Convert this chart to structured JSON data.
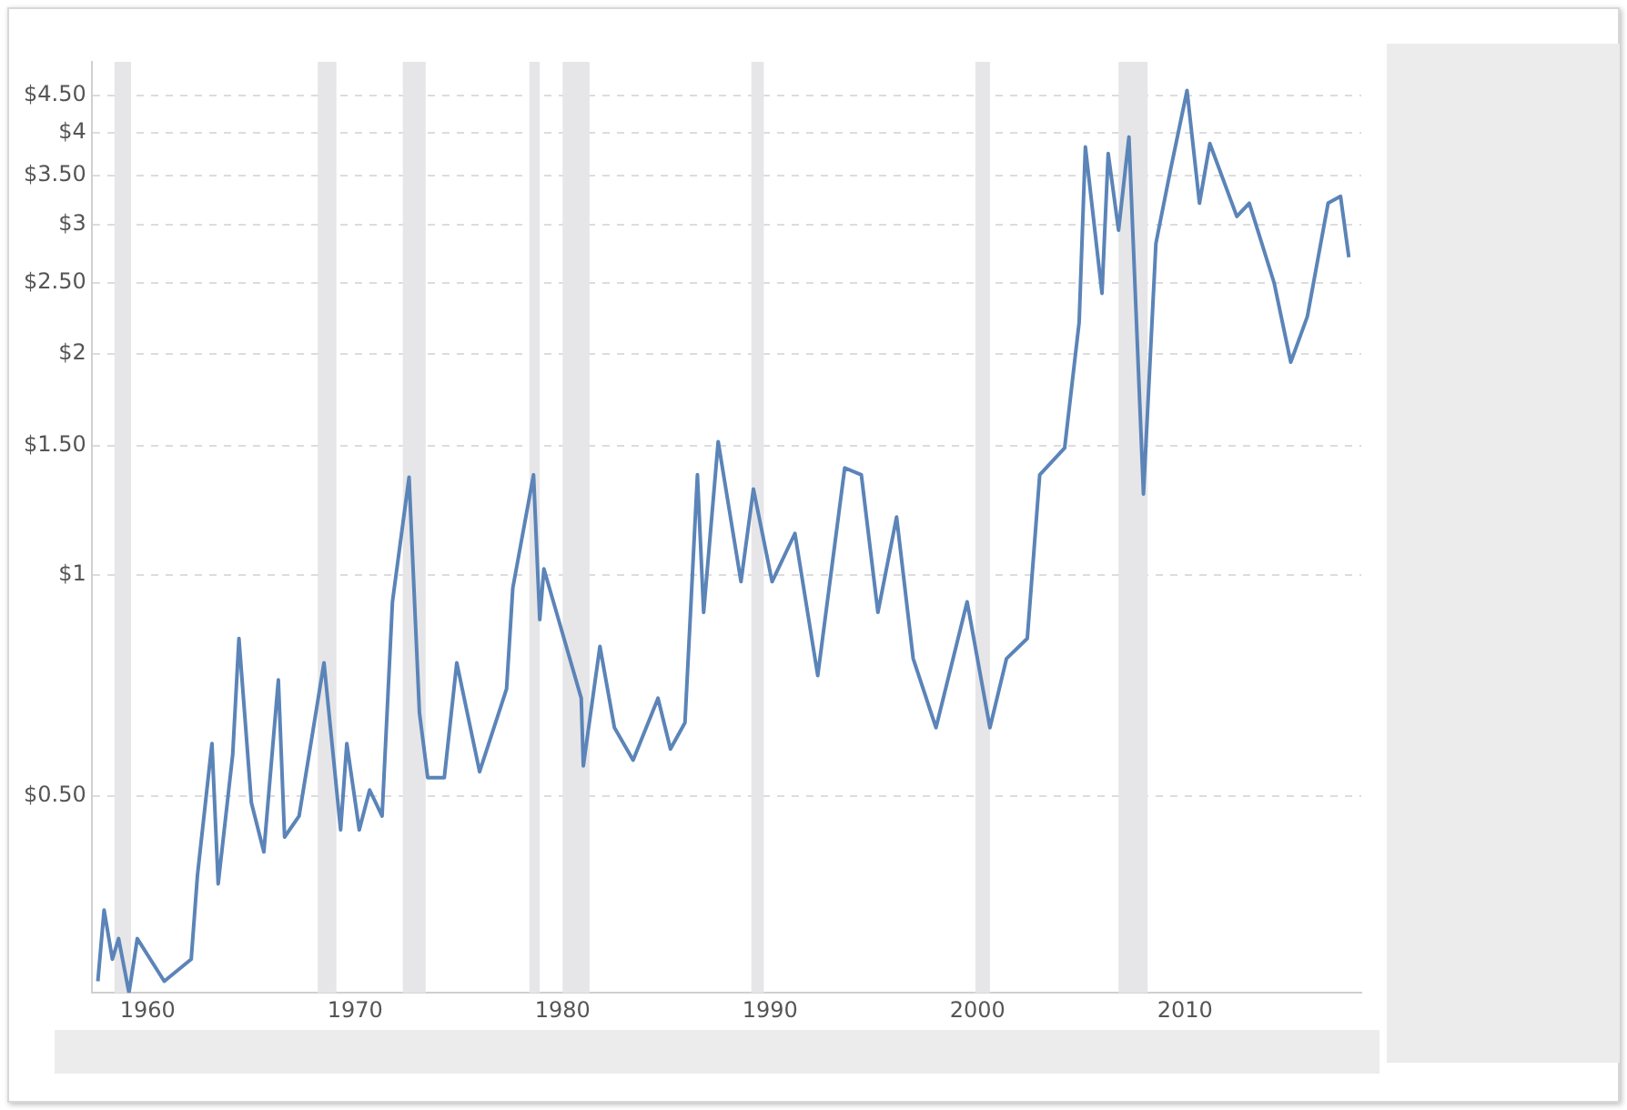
{
  "chart_data": {
    "type": "line",
    "color": "#5b84b8",
    "x": [
      1957.6,
      1957.9,
      1958.3,
      1958.6,
      1959.1,
      1959.5,
      1960.8,
      1962.1,
      1962.4,
      1963.1,
      1963.4,
      1964.1,
      1964.4,
      1965.0,
      1965.6,
      1966.3,
      1966.6,
      1967.3,
      1968.5,
      1969.3,
      1969.6,
      1970.2,
      1970.7,
      1971.3,
      1971.8,
      1972.6,
      1973.1,
      1973.5,
      1974.3,
      1974.9,
      1976.0,
      1977.3,
      1977.6,
      1978.6,
      1978.9,
      1979.1,
      1980.9,
      1981.0,
      1981.8,
      1982.5,
      1983.4,
      1984.6,
      1985.2,
      1985.9,
      1986.5,
      1986.8,
      1987.5,
      1988.6,
      1989.2,
      1990.1,
      1991.2,
      1992.3,
      1993.6,
      1994.4,
      1995.2,
      1996.1,
      1996.9,
      1998.0,
      1999.5,
      2000.6,
      2001.4,
      2002.4,
      2003.0,
      2004.2,
      2004.9,
      2005.2,
      2006.0,
      2006.3,
      2006.8,
      2007.3,
      2008.0,
      2008.6,
      2009.3,
      2010.1,
      2010.7,
      2011.2,
      2012.5,
      2013.1,
      2014.3,
      2015.1,
      2015.9,
      2016.9,
      2017.5,
      2017.9
    ],
    "values": [
      0.28,
      0.35,
      0.3,
      0.32,
      0.27,
      0.32,
      0.28,
      0.3,
      0.39,
      0.59,
      0.38,
      0.57,
      0.82,
      0.49,
      0.42,
      0.72,
      0.44,
      0.47,
      0.76,
      0.45,
      0.59,
      0.45,
      0.51,
      0.47,
      0.92,
      1.36,
      0.65,
      0.53,
      0.53,
      0.76,
      0.54,
      0.7,
      0.96,
      1.37,
      0.87,
      1.02,
      0.68,
      0.55,
      0.8,
      0.62,
      0.56,
      0.68,
      0.58,
      0.63,
      1.37,
      0.89,
      1.52,
      0.98,
      1.31,
      0.98,
      1.14,
      0.73,
      1.4,
      1.37,
      0.89,
      1.2,
      0.77,
      0.62,
      0.92,
      0.62,
      0.77,
      0.82,
      1.37,
      1.49,
      2.21,
      3.83,
      2.42,
      3.75,
      2.95,
      3.95,
      1.29,
      2.83,
      3.56,
      4.57,
      3.21,
      3.87,
      3.08,
      3.21,
      2.5,
      1.95,
      2.25,
      3.21,
      3.28,
      2.71
    ],
    "log": "y",
    "grid": "y",
    "line_style": "solid",
    "marker": "none",
    "xlim": [
      1957.3,
      2018.5
    ],
    "xticks": [
      1960,
      1970,
      1980,
      1990,
      2000,
      2010
    ],
    "ylim": [
      0.27,
      5
    ],
    "yticks": [
      {
        "value": 0.5,
        "label": "$0.50"
      },
      {
        "value": 1,
        "label": "$1"
      },
      {
        "value": 1.5,
        "label": "$1.50"
      },
      {
        "value": 2,
        "label": "$2"
      },
      {
        "value": 2.5,
        "label": "$2.50"
      },
      {
        "value": 3,
        "label": "$3"
      },
      {
        "value": 3.5,
        "label": "$3.50"
      },
      {
        "value": 4,
        "label": "$4"
      },
      {
        "value": 4.5,
        "label": "$4.50"
      }
    ],
    "bands": [
      {
        "axis": "x",
        "from": 1958.4,
        "to": 1959.2,
        "color": "#e6e6e8"
      },
      {
        "axis": "x",
        "from": 1968.2,
        "to": 1969.1,
        "color": "#e6e6e8"
      },
      {
        "axis": "x",
        "from": 1972.3,
        "to": 1973.4,
        "color": "#e6e6e8"
      },
      {
        "axis": "x",
        "from": 1978.4,
        "to": 1978.9,
        "color": "#e6e6e8"
      },
      {
        "axis": "x",
        "from": 1980.0,
        "to": 1981.3,
        "color": "#e6e6e8"
      },
      {
        "axis": "x",
        "from": 1989.1,
        "to": 1989.7,
        "color": "#e6e6e8"
      },
      {
        "axis": "x",
        "from": 1999.9,
        "to": 2000.6,
        "color": "#e6e6e8"
      },
      {
        "axis": "x",
        "from": 2006.8,
        "to": 2008.2,
        "color": "#e6e6e8"
      }
    ]
  }
}
